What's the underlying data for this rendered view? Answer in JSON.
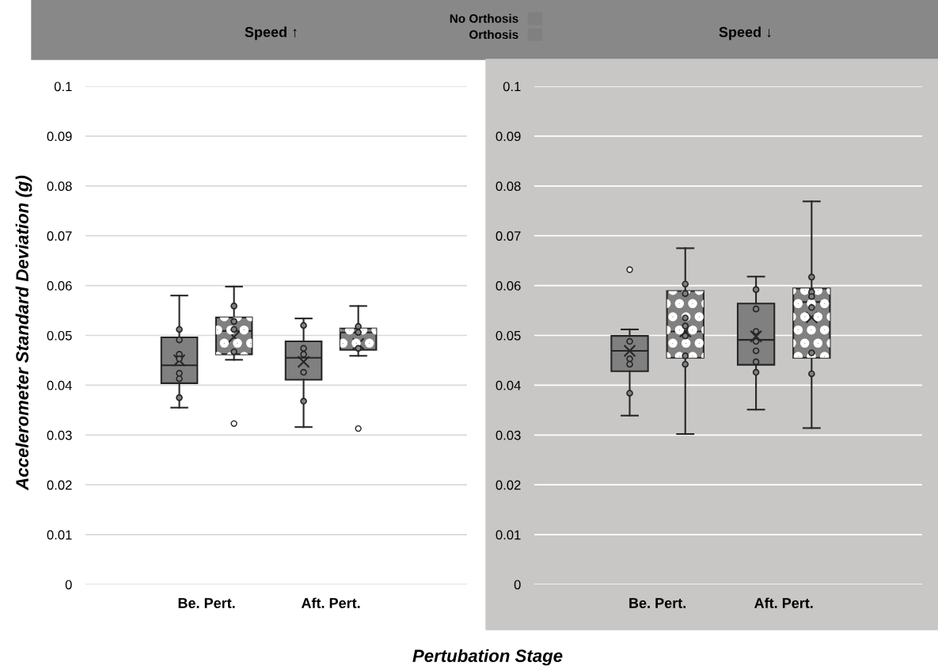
{
  "chart_data": [
    {
      "type": "box",
      "title": "Speed ↑",
      "ylabel": "Accelerometer Standard Deviation (g)",
      "xlabel": "Pertubation Stage",
      "categories": [
        "Be. Pert.",
        "Aft. Pert."
      ],
      "ylim": [
        0,
        0.1
      ],
      "yticks": [
        0,
        0.01,
        0.02,
        0.03,
        0.04,
        0.05,
        0.06,
        0.07,
        0.08,
        0.09,
        0.1
      ],
      "grid": "y",
      "legend": "top",
      "series": [
        {
          "name": "No Orthosis",
          "color": "#808080",
          "boxes": [
            {
              "low": 0.0355,
              "q1": 0.0404,
              "median": 0.044,
              "q3": 0.0496,
              "high": 0.058,
              "mean": 0.045
            },
            {
              "low": 0.0316,
              "q1": 0.0411,
              "median": 0.0455,
              "q3": 0.0488,
              "high": 0.0534,
              "mean": 0.0447
            }
          ]
        },
        {
          "name": "Orthosis",
          "color": "#808080",
          "boxes": [
            {
              "low": 0.0451,
              "q1": 0.0462,
              "median": 0.0509,
              "q3": 0.0536,
              "high": 0.0598,
              "mean": 0.0497,
              "outliers": [
                0.0323
              ]
            },
            {
              "low": 0.0459,
              "q1": 0.0471,
              "median": 0.0506,
              "q3": 0.0514,
              "high": 0.0559,
              "mean": 0.0483,
              "outliers": [
                0.0313
              ]
            }
          ]
        },
        {
          "type": "scatter",
          "color": "#808080",
          "x": [
            "Be. Pert.",
            "Be. Pert.",
            "Be. Pert.",
            "Be. Pert.",
            "Be. Pert.",
            "Be. Pert.",
            "Be. Pert.",
            "Aft. Pert.",
            "Aft. Pert.",
            "Aft. Pert.",
            "Aft. Pert.",
            "Aft. Pert."
          ],
          "values": [
            0.0512,
            0.0491,
            0.0462,
            0.0453,
            0.0424,
            0.0413,
            0.0375,
            0.052,
            0.0474,
            0.0462,
            0.0426,
            0.0368
          ]
        },
        {
          "type": "scatter",
          "color": "#808080",
          "x": [
            "Be. Pert.",
            "Be. Pert.",
            "Be. Pert.",
            "Be. Pert.",
            "Aft. Pert.",
            "Aft. Pert.",
            "Aft. Pert."
          ],
          "values": [
            0.0559,
            0.0528,
            0.0512,
            0.0467,
            0.0518,
            0.0506,
            0.0474
          ]
        }
      ]
    },
    {
      "type": "box",
      "title": "Speed ↓",
      "categories": [
        "Be. Pert.",
        "Aft. Pert."
      ],
      "ylim": [
        0,
        0.1
      ],
      "yticks": [
        0,
        0.01,
        0.02,
        0.03,
        0.04,
        0.05,
        0.06,
        0.07,
        0.08,
        0.09,
        0.1
      ],
      "grid": "y",
      "series": [
        {
          "color": "#808080",
          "boxes": [
            {
              "low": 0.0339,
              "q1": 0.0428,
              "median": 0.0469,
              "q3": 0.0499,
              "high": 0.0512,
              "mean": 0.0469,
              "outliers": [
                0.0632
              ]
            },
            {
              "low": 0.0351,
              "q1": 0.0441,
              "median": 0.0491,
              "q3": 0.0564,
              "high": 0.0618,
              "mean": 0.0498
            }
          ]
        },
        {
          "color": "#808080",
          "boxes": [
            {
              "low": 0.0302,
              "q1": 0.0455,
              "median": 0.0508,
              "q3": 0.0589,
              "high": 0.0675,
              "mean": 0.0508
            },
            {
              "low": 0.0314,
              "q1": 0.0455,
              "median": 0.0567,
              "q3": 0.0594,
              "high": 0.0769,
              "mean": 0.0536
            }
          ]
        },
        {
          "type": "scatter",
          "color": "#808080",
          "x": [
            "Be. Pert.",
            "Be. Pert.",
            "Be. Pert.",
            "Be. Pert.",
            "Aft. Pert.",
            "Aft. Pert.",
            "Aft. Pert.",
            "Aft. Pert.",
            "Aft. Pert.",
            "Aft. Pert.",
            "Aft. Pert."
          ],
          "values": [
            0.0488,
            0.0453,
            0.0442,
            0.0384,
            0.0592,
            0.0553,
            0.0508,
            0.0488,
            0.0469,
            0.0447,
            0.0426
          ]
        },
        {
          "type": "scatter",
          "color": "#808080",
          "x": [
            "Be. Pert.",
            "Be. Pert.",
            "Be. Pert.",
            "Be. Pert.",
            "Be. Pert.",
            "Be. Pert.",
            "Be. Pert.",
            "Aft. Pert.",
            "Aft. Pert.",
            "Aft. Pert.",
            "Aft. Pert.",
            "Aft. Pert.",
            "Aft. Pert."
          ],
          "values": [
            0.0603,
            0.0584,
            0.0535,
            0.0519,
            0.0499,
            0.0459,
            0.0442,
            0.0617,
            0.0587,
            0.0578,
            0.0556,
            0.0465,
            0.0423
          ]
        }
      ]
    }
  ]
}
